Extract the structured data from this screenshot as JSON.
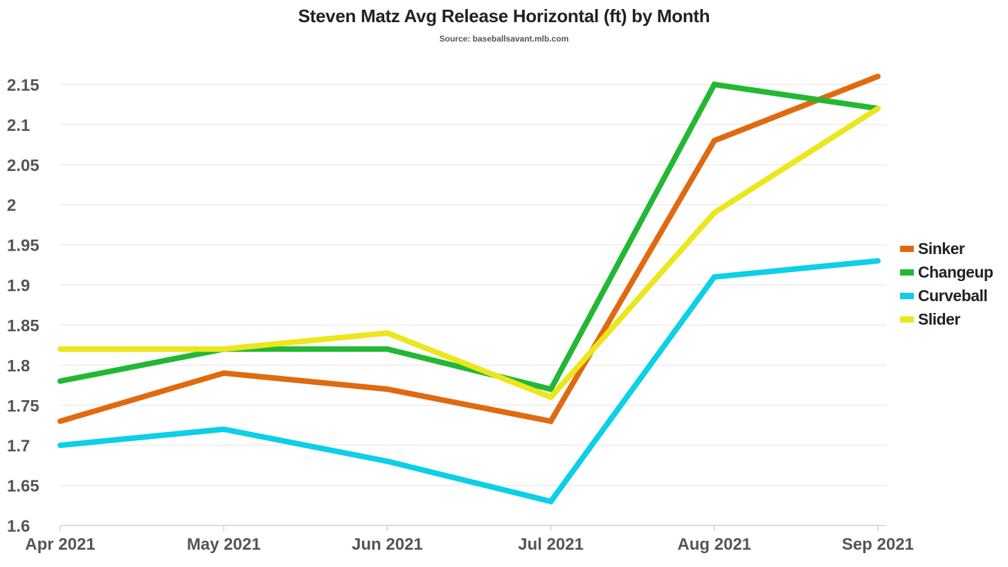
{
  "title": "Steven Matz Avg Release Horizontal (ft) by Month",
  "subtitle": "Source: baseballsavant.mlb.com",
  "chart_data": {
    "type": "line",
    "title": "Steven Matz Avg Release Horizontal (ft) by Month",
    "subtitle": "Source: baseballsavant.mlb.com",
    "xlabel": "",
    "ylabel": "",
    "categories": [
      "Apr 2021",
      "May 2021",
      "Jun 2021",
      "Jul 2021",
      "Aug 2021",
      "Sep 2021"
    ],
    "ylim": [
      1.6,
      2.15
    ],
    "yticks": [
      "1.6",
      "1.65",
      "1.7",
      "1.75",
      "1.8",
      "1.85",
      "1.9",
      "1.95",
      "2",
      "2.05",
      "2.1",
      "2.15"
    ],
    "grid": true,
    "legend_position": "right",
    "series": [
      {
        "name": "Sinker",
        "color": "#e06a10",
        "values": [
          1.73,
          1.79,
          1.77,
          1.73,
          2.08,
          2.16
        ]
      },
      {
        "name": "Changeup",
        "color": "#22b833",
        "values": [
          1.78,
          1.82,
          1.82,
          1.77,
          2.15,
          2.12
        ]
      },
      {
        "name": "Curveball",
        "color": "#0ccfe8",
        "values": [
          1.7,
          1.72,
          1.68,
          1.63,
          1.91,
          1.93
        ]
      },
      {
        "name": "Slider",
        "color": "#ece61c",
        "values": [
          1.82,
          1.82,
          1.84,
          1.76,
          1.99,
          2.12
        ]
      }
    ]
  }
}
